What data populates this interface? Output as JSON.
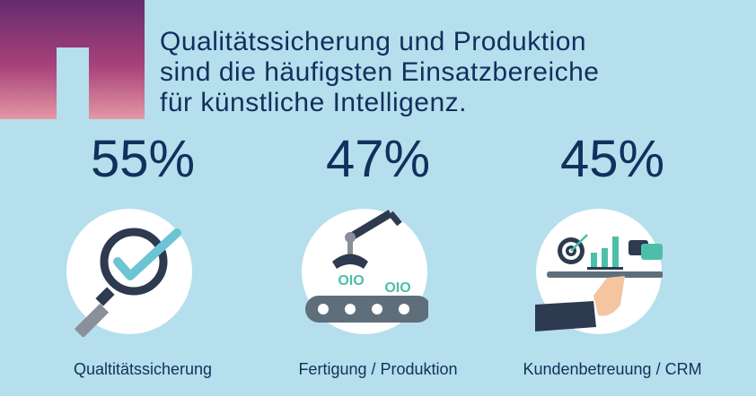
{
  "headline": {
    "lines": [
      "Qualitätssicherung und Produktion",
      "sind die häufigsten Einsatzbereiche",
      "für künstliche Intelligenz."
    ]
  },
  "stats": [
    {
      "percent": "55%",
      "value": 55,
      "label": "Qualtitätssicherung",
      "icon": "magnifier-check-icon"
    },
    {
      "percent": "47%",
      "value": 47,
      "label": "Fertigung / Produktion",
      "icon": "robot-arm-conveyor-icon"
    },
    {
      "percent": "45%",
      "value": 45,
      "label": "Kundenbetreuung / CRM",
      "icon": "serving-tray-icon"
    }
  ],
  "colors": {
    "background": "#b5dfec",
    "text": "#10305e",
    "accent_teal": "#4dbfa8",
    "dark": "#2d3a4f",
    "gradient_top": "#652b6e",
    "gradient_bottom": "#e497a5"
  }
}
